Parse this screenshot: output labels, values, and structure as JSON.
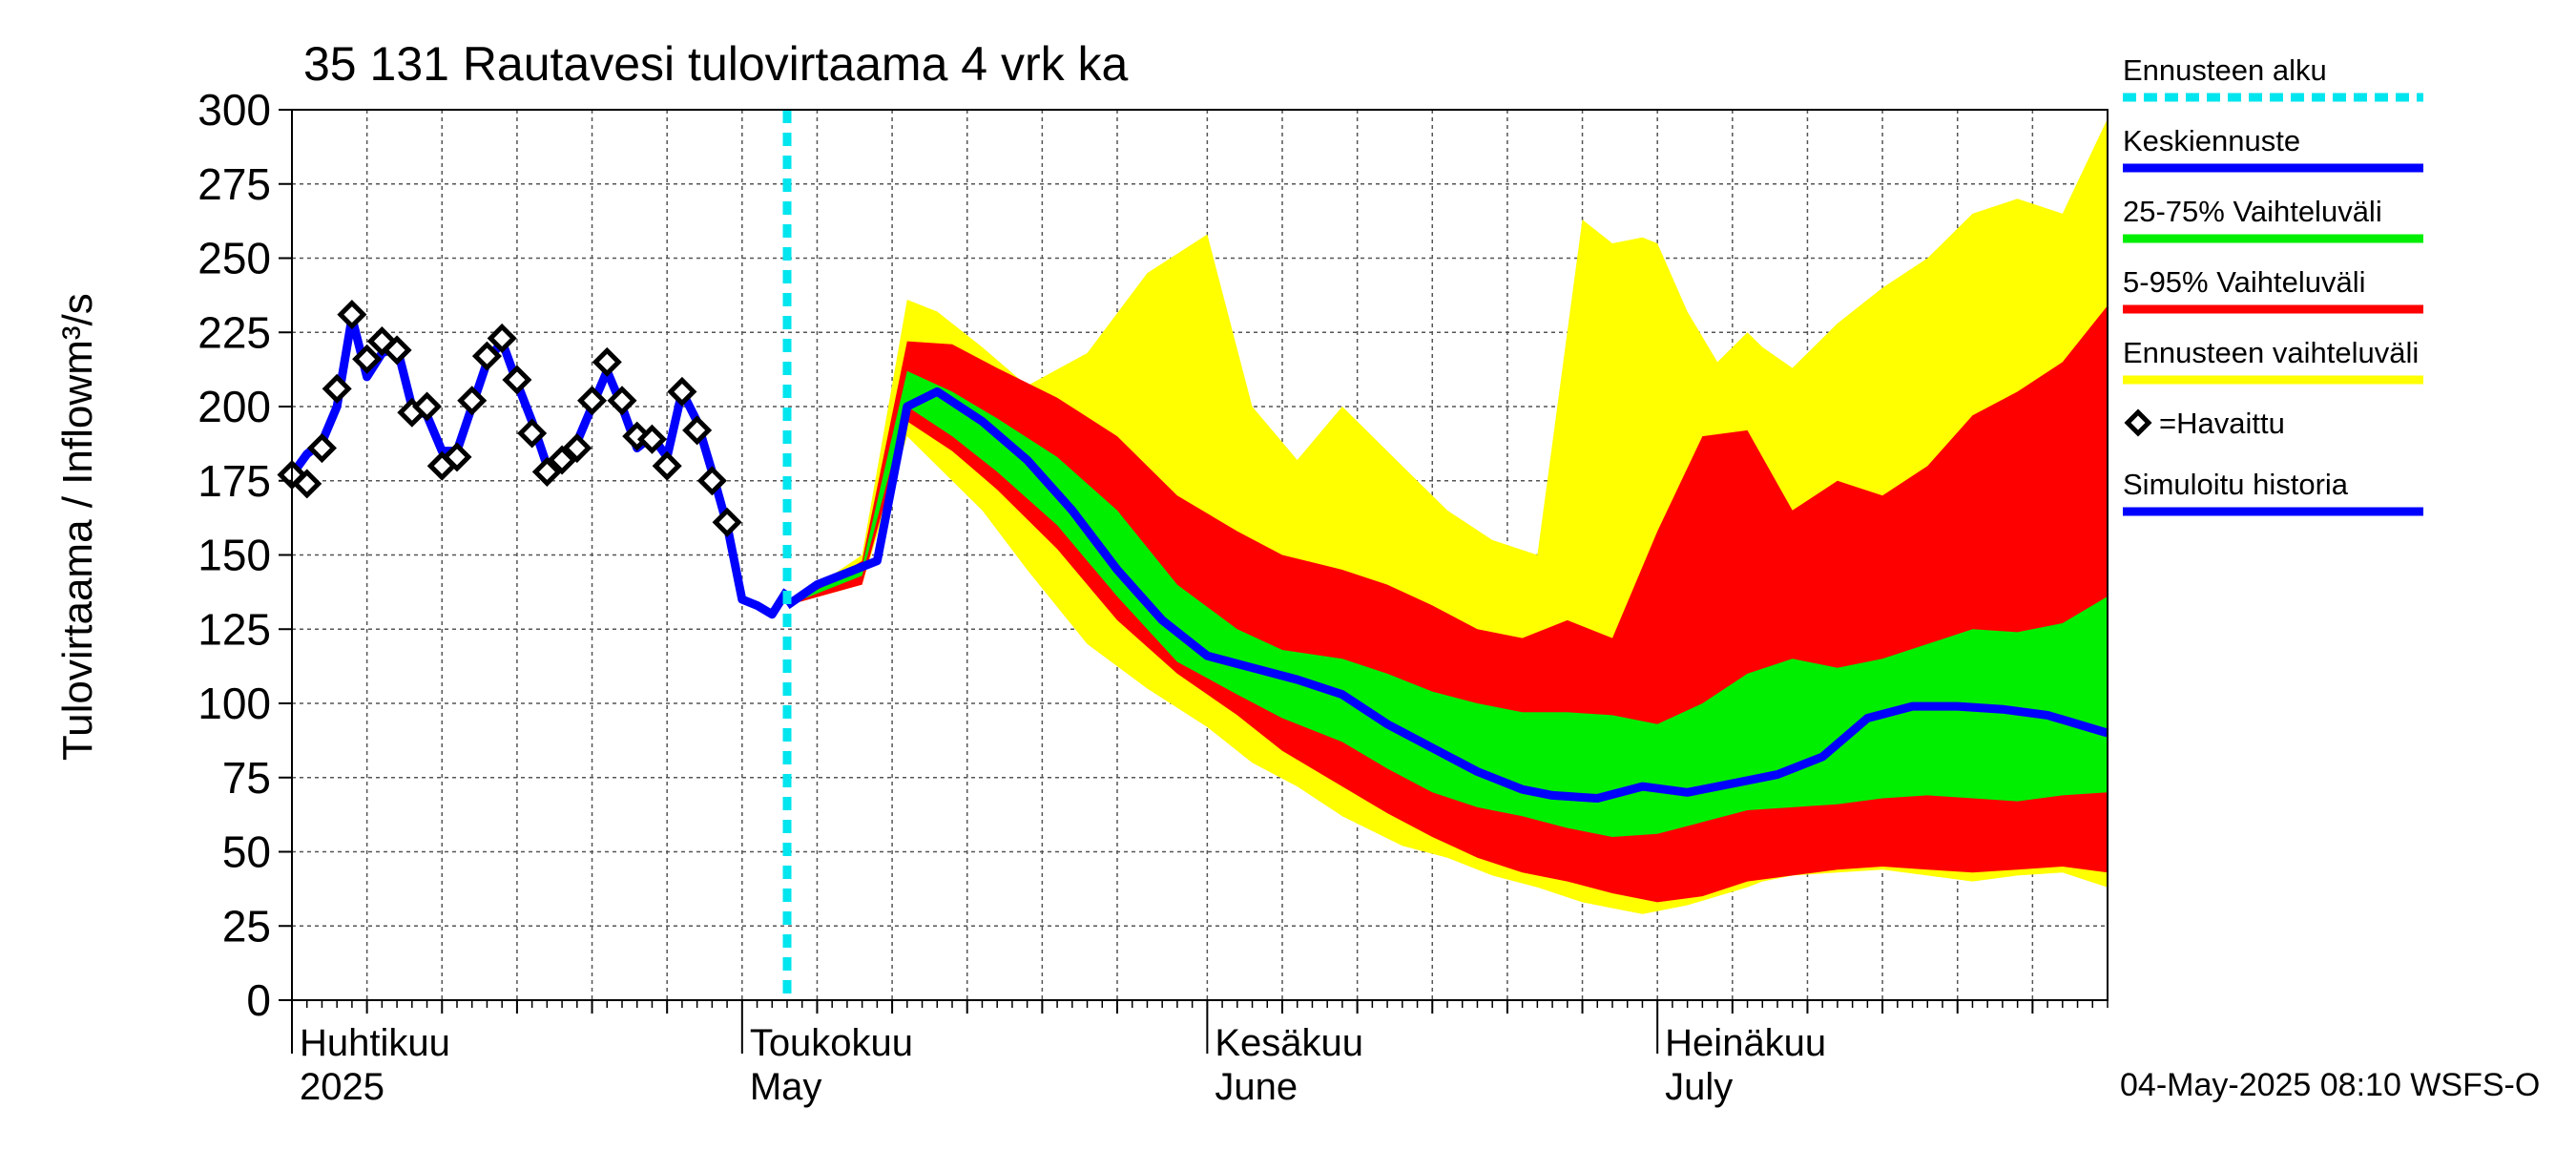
{
  "chart_data": {
    "type": "area",
    "title": "35 131 Rautavesi tulovirtaama 4 vrk ka",
    "ylabel": "Tulovirtaama / Inflow",
    "yunit": "m³/s",
    "ylim": [
      0,
      300
    ],
    "yticks": [
      0,
      25,
      50,
      75,
      100,
      125,
      150,
      175,
      200,
      225,
      250,
      275,
      300
    ],
    "xlim": [
      "2025-04-01",
      "2025-07-31"
    ],
    "x_tick_days": [
      "2025-04-01",
      "2025-05-01",
      "2025-06-01",
      "2025-07-01"
    ],
    "x_grid_days": [
      "2025-04-06",
      "2025-04-11",
      "2025-04-16",
      "2025-04-21",
      "2025-04-26",
      "2025-05-06",
      "2025-05-11",
      "2025-05-16",
      "2025-05-21",
      "2025-05-26",
      "2025-06-06",
      "2025-06-11",
      "2025-06-16",
      "2025-06-21",
      "2025-06-26",
      "2025-07-06",
      "2025-07-11",
      "2025-07-16",
      "2025-07-21",
      "2025-07-26"
    ],
    "x_labels": [
      {
        "date": "2025-04-01",
        "line1": "Huhtikuu",
        "line2": "2025"
      },
      {
        "date": "2025-05-01",
        "line1": "Toukokuu",
        "line2": "May"
      },
      {
        "date": "2025-06-01",
        "line1": "Kesäkuu",
        "line2": "June"
      },
      {
        "date": "2025-07-01",
        "line1": "Heinäkuu",
        "line2": "July"
      }
    ],
    "forecast_start": "2025-05-04",
    "grid": true,
    "legend_position": "right",
    "footer": "04-May-2025 08:10 WSFS-O",
    "legend": [
      {
        "label": "Ennusteen alku",
        "color": "#00e5ee",
        "style": "dashed"
      },
      {
        "label": "Keskiennuste",
        "color": "#0000ff",
        "style": "line"
      },
      {
        "label": "25-75% Vaihteluväli",
        "color": "#00ee00",
        "style": "line"
      },
      {
        "label": "5-95% Vaihteluväli",
        "color": "#ff0000",
        "style": "line"
      },
      {
        "label": "Ennusteen vaihteluväli",
        "color": "#ffff00",
        "style": "line"
      },
      {
        "label": "=Havaittu",
        "color": "#000000",
        "style": "marker"
      },
      {
        "label": "Simuloitu historia",
        "color": "#0000ff",
        "style": "line"
      }
    ],
    "bands": {
      "x": [
        "2025-05-04",
        "2025-05-09",
        "2025-05-12",
        "2025-05-14",
        "2025-05-17",
        "2025-05-20",
        "2025-05-24",
        "2025-05-28",
        "2025-06-01",
        "2025-06-04",
        "2025-06-07",
        "2025-06-10",
        "2025-06-14",
        "2025-06-17",
        "2025-06-20",
        "2025-06-23",
        "2025-06-26",
        "2025-06-28",
        "2025-06-30",
        "2025-07-01",
        "2025-07-03",
        "2025-07-05",
        "2025-07-07",
        "2025-07-08",
        "2025-07-10",
        "2025-07-13",
        "2025-07-16",
        "2025-07-19",
        "2025-07-22",
        "2025-07-25",
        "2025-07-28",
        "2025-07-31"
      ],
      "total": {
        "upper": [
          133,
          150,
          236,
          232,
          220,
          207,
          218,
          245,
          258,
          200,
          182,
          200,
          180,
          165,
          155,
          150,
          263,
          255,
          257,
          255,
          232,
          215,
          225,
          220,
          213,
          228,
          240,
          250,
          265,
          270,
          265,
          297
        ],
        "lower": [
          133,
          140,
          190,
          180,
          165,
          145,
          120,
          105,
          92,
          80,
          72,
          62,
          52,
          48,
          42,
          38,
          33,
          31,
          29,
          30,
          32,
          35,
          38,
          40,
          42,
          43,
          44,
          42,
          40,
          42,
          43,
          38
        ]
      },
      "p5_95": {
        "upper": [
          133,
          148,
          222,
          220,
          210,
          196,
          180,
          160,
          150,
          140,
          148,
          140,
          135,
          128,
          125,
          130,
          122,
          160,
          190,
          192,
          160,
          175,
          170,
          180,
          195,
          200,
          205,
          210,
          205,
          215,
          225,
          234
        ]
      }
    },
    "series": [
      {
        "name": "Ennusteen vaihteluväli",
        "role": "band-total",
        "color": "#ffff00"
      },
      {
        "name": "5-95% Vaihteluväli",
        "role": "band-5-95",
        "color": "#ff0000",
        "x": [
          "2025-05-04",
          "2025-05-09",
          "2025-05-12",
          "2025-05-15",
          "2025-05-18",
          "2025-05-22",
          "2025-05-26",
          "2025-05-30",
          "2025-06-03",
          "2025-06-06",
          "2025-06-10",
          "2025-06-13",
          "2025-06-16",
          "2025-06-19",
          "2025-06-22",
          "2025-06-25",
          "2025-06-28",
          "2025-07-01",
          "2025-07-04",
          "2025-07-07",
          "2025-07-10",
          "2025-07-13",
          "2025-07-16",
          "2025-07-19",
          "2025-07-22",
          "2025-07-25",
          "2025-07-28",
          "2025-07-31"
        ],
        "upper": [
          133,
          148,
          222,
          221,
          213,
          203,
          190,
          170,
          158,
          150,
          145,
          140,
          133,
          125,
          122,
          128,
          122,
          158,
          190,
          192,
          165,
          175,
          170,
          180,
          197,
          205,
          215,
          234
        ],
        "lower": [
          133,
          140,
          195,
          185,
          172,
          152,
          128,
          110,
          96,
          84,
          72,
          63,
          55,
          48,
          43,
          40,
          36,
          33,
          35,
          40,
          42,
          44,
          45,
          44,
          43,
          44,
          45,
          43
        ]
      },
      {
        "name": "25-75% Vaihteluväli",
        "role": "band-25-75",
        "color": "#00ee00",
        "x": [
          "2025-05-04",
          "2025-05-09",
          "2025-05-12",
          "2025-05-15",
          "2025-05-18",
          "2025-05-22",
          "2025-05-26",
          "2025-05-30",
          "2025-06-03",
          "2025-06-06",
          "2025-06-10",
          "2025-06-13",
          "2025-06-16",
          "2025-06-19",
          "2025-06-22",
          "2025-06-25",
          "2025-06-28",
          "2025-07-01",
          "2025-07-04",
          "2025-07-07",
          "2025-07-10",
          "2025-07-13",
          "2025-07-16",
          "2025-07-19",
          "2025-07-22",
          "2025-07-25",
          "2025-07-28",
          "2025-07-31"
        ],
        "upper": [
          133,
          146,
          212,
          205,
          196,
          183,
          165,
          140,
          125,
          118,
          115,
          110,
          104,
          100,
          97,
          97,
          96,
          93,
          100,
          110,
          115,
          112,
          115,
          120,
          125,
          124,
          127,
          136
        ],
        "lower": [
          133,
          143,
          200,
          190,
          178,
          160,
          136,
          114,
          103,
          95,
          87,
          78,
          70,
          65,
          62,
          58,
          55,
          56,
          60,
          64,
          65,
          66,
          68,
          69,
          68,
          67,
          69,
          70
        ]
      },
      {
        "name": "Keskiennuste",
        "role": "median",
        "color": "#0000ff",
        "x": [
          "2025-05-04",
          "2025-05-06",
          "2025-05-08",
          "2025-05-10",
          "2025-05-12",
          "2025-05-14",
          "2025-05-17",
          "2025-05-20",
          "2025-05-23",
          "2025-05-26",
          "2025-05-29",
          "2025-06-01",
          "2025-06-04",
          "2025-06-07",
          "2025-06-10",
          "2025-06-13",
          "2025-06-16",
          "2025-06-19",
          "2025-06-22",
          "2025-06-24",
          "2025-06-27",
          "2025-06-30",
          "2025-07-03",
          "2025-07-06",
          "2025-07-09",
          "2025-07-12",
          "2025-07-15",
          "2025-07-18",
          "2025-07-21",
          "2025-07-24",
          "2025-07-27",
          "2025-07-31"
        ],
        "y": [
          133,
          140,
          144,
          148,
          200,
          205,
          195,
          182,
          165,
          145,
          128,
          116,
          112,
          108,
          103,
          93,
          85,
          77,
          71,
          69,
          68,
          72,
          70,
          73,
          76,
          82,
          95,
          99,
          99,
          98,
          96,
          90
        ]
      },
      {
        "name": "Simuloitu historia",
        "role": "history",
        "color": "#0000ff",
        "x": [
          "2025-04-01",
          "2025-04-02",
          "2025-04-03",
          "2025-04-04",
          "2025-04-05",
          "2025-04-06",
          "2025-04-07",
          "2025-04-08",
          "2025-04-09",
          "2025-04-10",
          "2025-04-11",
          "2025-04-12",
          "2025-04-13",
          "2025-04-14",
          "2025-04-15",
          "2025-04-16",
          "2025-04-17",
          "2025-04-18",
          "2025-04-19",
          "2025-04-20",
          "2025-04-21",
          "2025-04-22",
          "2025-04-23",
          "2025-04-24",
          "2025-04-25",
          "2025-04-26",
          "2025-04-27",
          "2025-04-28",
          "2025-04-29",
          "2025-04-30",
          "2025-05-01",
          "2025-05-02",
          "2025-05-03",
          "2025-05-04"
        ],
        "y": [
          177,
          184,
          188,
          200,
          230,
          210,
          218,
          220,
          200,
          197,
          185,
          185,
          200,
          215,
          222,
          208,
          195,
          180,
          183,
          188,
          200,
          212,
          200,
          186,
          190,
          183,
          205,
          195,
          178,
          160,
          135,
          133,
          130,
          138
        ]
      },
      {
        "name": "=Havaittu",
        "role": "observed",
        "color": "#000000",
        "x": [
          "2025-04-01",
          "2025-04-02",
          "2025-04-03",
          "2025-04-04",
          "2025-04-05",
          "2025-04-06",
          "2025-04-07",
          "2025-04-08",
          "2025-04-09",
          "2025-04-10",
          "2025-04-11",
          "2025-04-12",
          "2025-04-13",
          "2025-04-14",
          "2025-04-15",
          "2025-04-16",
          "2025-04-17",
          "2025-04-18",
          "2025-04-19",
          "2025-04-20",
          "2025-04-21",
          "2025-04-22",
          "2025-04-23",
          "2025-04-24",
          "2025-04-25",
          "2025-04-26",
          "2025-04-27",
          "2025-04-28",
          "2025-04-29",
          "2025-04-30"
        ],
        "y": [
          177,
          174,
          186,
          206,
          231,
          216,
          222,
          219,
          198,
          200,
          180,
          183,
          202,
          217,
          223,
          209,
          191,
          178,
          182,
          186,
          202,
          215,
          202,
          190,
          189,
          180,
          205,
          192,
          175,
          161
        ]
      }
    ]
  }
}
